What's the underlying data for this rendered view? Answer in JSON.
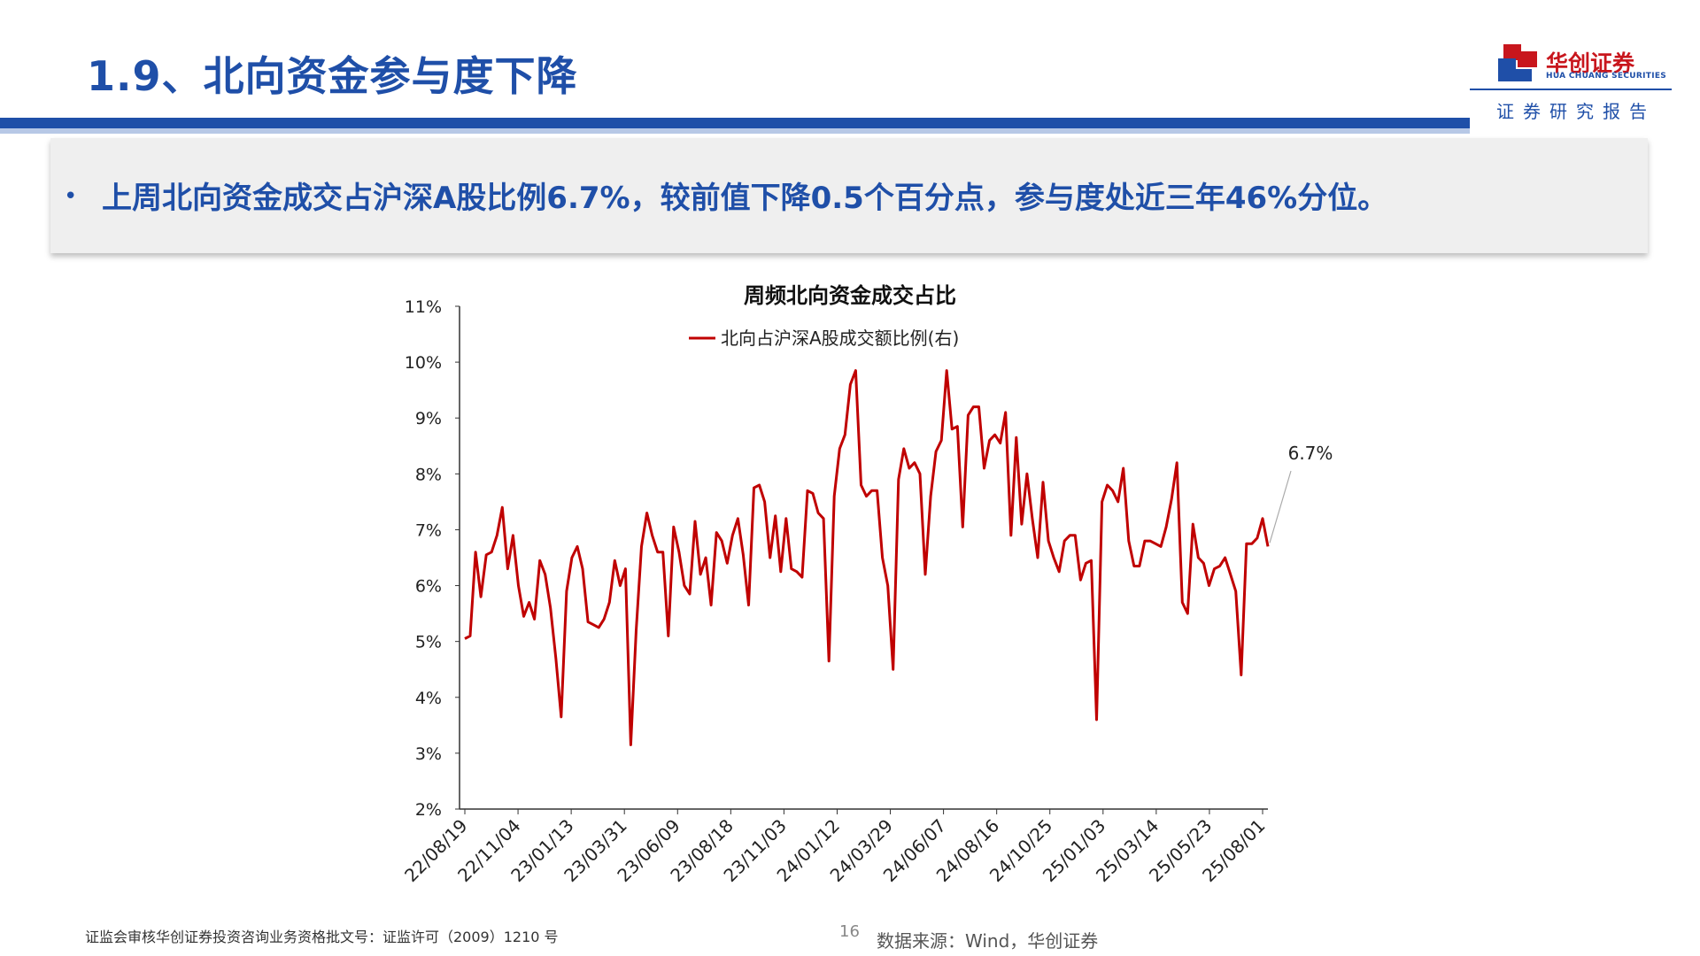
{
  "header": {
    "title": "1.9、北向资金参与度下降",
    "logo": {
      "name": "华创证券",
      "english": "HUA CHUANG SECURITIES",
      "tagline": "证券研究报告"
    }
  },
  "summary": {
    "bullet": "•",
    "text": "上周北向资金成交占沪深A股比例6.7%，较前值下降0.5个百分点，参与度处近三年46%分位。"
  },
  "colors": {
    "brand_blue": "#1f4fa8",
    "series_red": "#c00000",
    "logo_red": "#c8161d"
  },
  "chart_data": {
    "type": "line",
    "title": "周频北向资金成交占比",
    "legend_position": "top-center",
    "grid": false,
    "y_unit": "%",
    "ylim": [
      2,
      11
    ],
    "y_ticks": [
      "11%",
      "10%",
      "9%",
      "8%",
      "7%",
      "6%",
      "5%",
      "4%",
      "3%",
      "2%"
    ],
    "x_ticks": [
      "22/08/19",
      "22/11/04",
      "23/01/13",
      "23/03/31",
      "23/06/09",
      "23/08/18",
      "23/11/03",
      "24/01/12",
      "24/03/29",
      "24/06/07",
      "24/08/16",
      "24/10/25",
      "25/01/03",
      "25/03/14",
      "25/05/23",
      "25/08/01"
    ],
    "annotation": {
      "label": "6.7%",
      "value": 6.7
    },
    "series": [
      {
        "name": "北向占沪深A股成交额比例(右)",
        "values": [
          5.05,
          5.1,
          6.6,
          5.8,
          6.55,
          6.6,
          6.9,
          7.4,
          6.3,
          6.9,
          6.0,
          5.45,
          5.7,
          5.4,
          6.45,
          6.2,
          5.6,
          4.7,
          3.65,
          5.9,
          6.5,
          6.7,
          6.3,
          5.35,
          5.3,
          5.25,
          5.4,
          5.7,
          6.45,
          6.0,
          6.3,
          3.15,
          5.2,
          6.7,
          7.3,
          6.9,
          6.6,
          6.6,
          5.1,
          7.05,
          6.6,
          6.0,
          5.85,
          7.15,
          6.2,
          6.5,
          5.65,
          6.95,
          6.8,
          6.4,
          6.9,
          7.2,
          6.55,
          5.65,
          7.75,
          7.8,
          7.5,
          6.5,
          7.25,
          6.25,
          7.2,
          6.3,
          6.25,
          6.15,
          7.7,
          7.65,
          7.3,
          7.2,
          4.65,
          7.6,
          8.45,
          8.7,
          9.6,
          9.85,
          7.8,
          7.6,
          7.7,
          7.7,
          6.5,
          6.0,
          4.5,
          7.9,
          8.45,
          8.1,
          8.2,
          8.0,
          6.2,
          7.6,
          8.4,
          8.6,
          9.85,
          8.8,
          8.85,
          7.05,
          9.05,
          9.2,
          9.2,
          8.1,
          8.6,
          8.7,
          8.55,
          9.1,
          6.9,
          8.65,
          7.1,
          8.0,
          7.2,
          6.5,
          7.85,
          6.8,
          6.5,
          6.25,
          6.8,
          6.9,
          6.9,
          6.1,
          6.4,
          6.45,
          3.6,
          7.5,
          7.8,
          7.7,
          7.5,
          8.1,
          6.8,
          6.35,
          6.35,
          6.8,
          6.8,
          6.75,
          6.7,
          7.05,
          7.55,
          8.2,
          5.7,
          5.5,
          7.1,
          6.5,
          6.4,
          6.0,
          6.3,
          6.35,
          6.5,
          6.2,
          5.9,
          4.4,
          6.75,
          6.75,
          6.85,
          7.2,
          6.7
        ]
      }
    ]
  },
  "footer": {
    "disclaimer": "证监会审核华创证券投资咨询业务资格批文号：证监许可（2009）1210 号",
    "page_number": "16",
    "source": "数据来源：Wind，华创证券"
  }
}
